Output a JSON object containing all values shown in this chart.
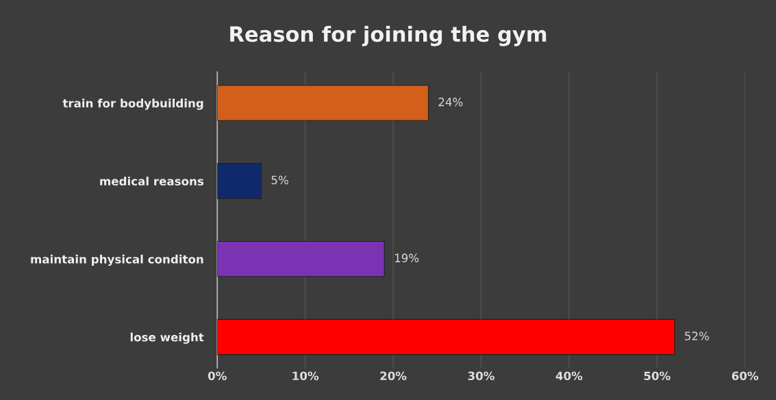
{
  "chart_data": {
    "type": "bar",
    "orientation": "horizontal",
    "title": "Reason for joining the gym",
    "categories": [
      "train for bodybuilding",
      "medical reasons",
      "maintain physical conditon",
      "lose weight"
    ],
    "values": [
      24,
      5,
      19,
      52
    ],
    "colors": [
      "#d2601a",
      "#10296b",
      "#7b33b3",
      "#ff0000"
    ],
    "value_labels": [
      "24%",
      "5%",
      "19%",
      "52%"
    ],
    "xlim": [
      0,
      60
    ],
    "xticks": [
      {
        "value": 0,
        "label": "0%"
      },
      {
        "value": 10,
        "label": "10%"
      },
      {
        "value": 20,
        "label": "20%"
      },
      {
        "value": 30,
        "label": "30%"
      },
      {
        "value": 40,
        "label": "40%"
      },
      {
        "value": 50,
        "label": "50%"
      },
      {
        "value": 60,
        "label": "60%"
      }
    ],
    "grid": "x",
    "legend": false
  }
}
